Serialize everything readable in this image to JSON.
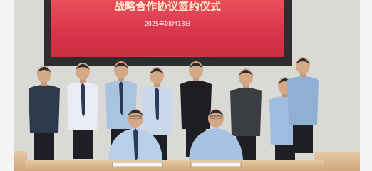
{
  "banner": {
    "title": "战略合作协议签约仪式",
    "date": "2025年08月18日"
  }
}
